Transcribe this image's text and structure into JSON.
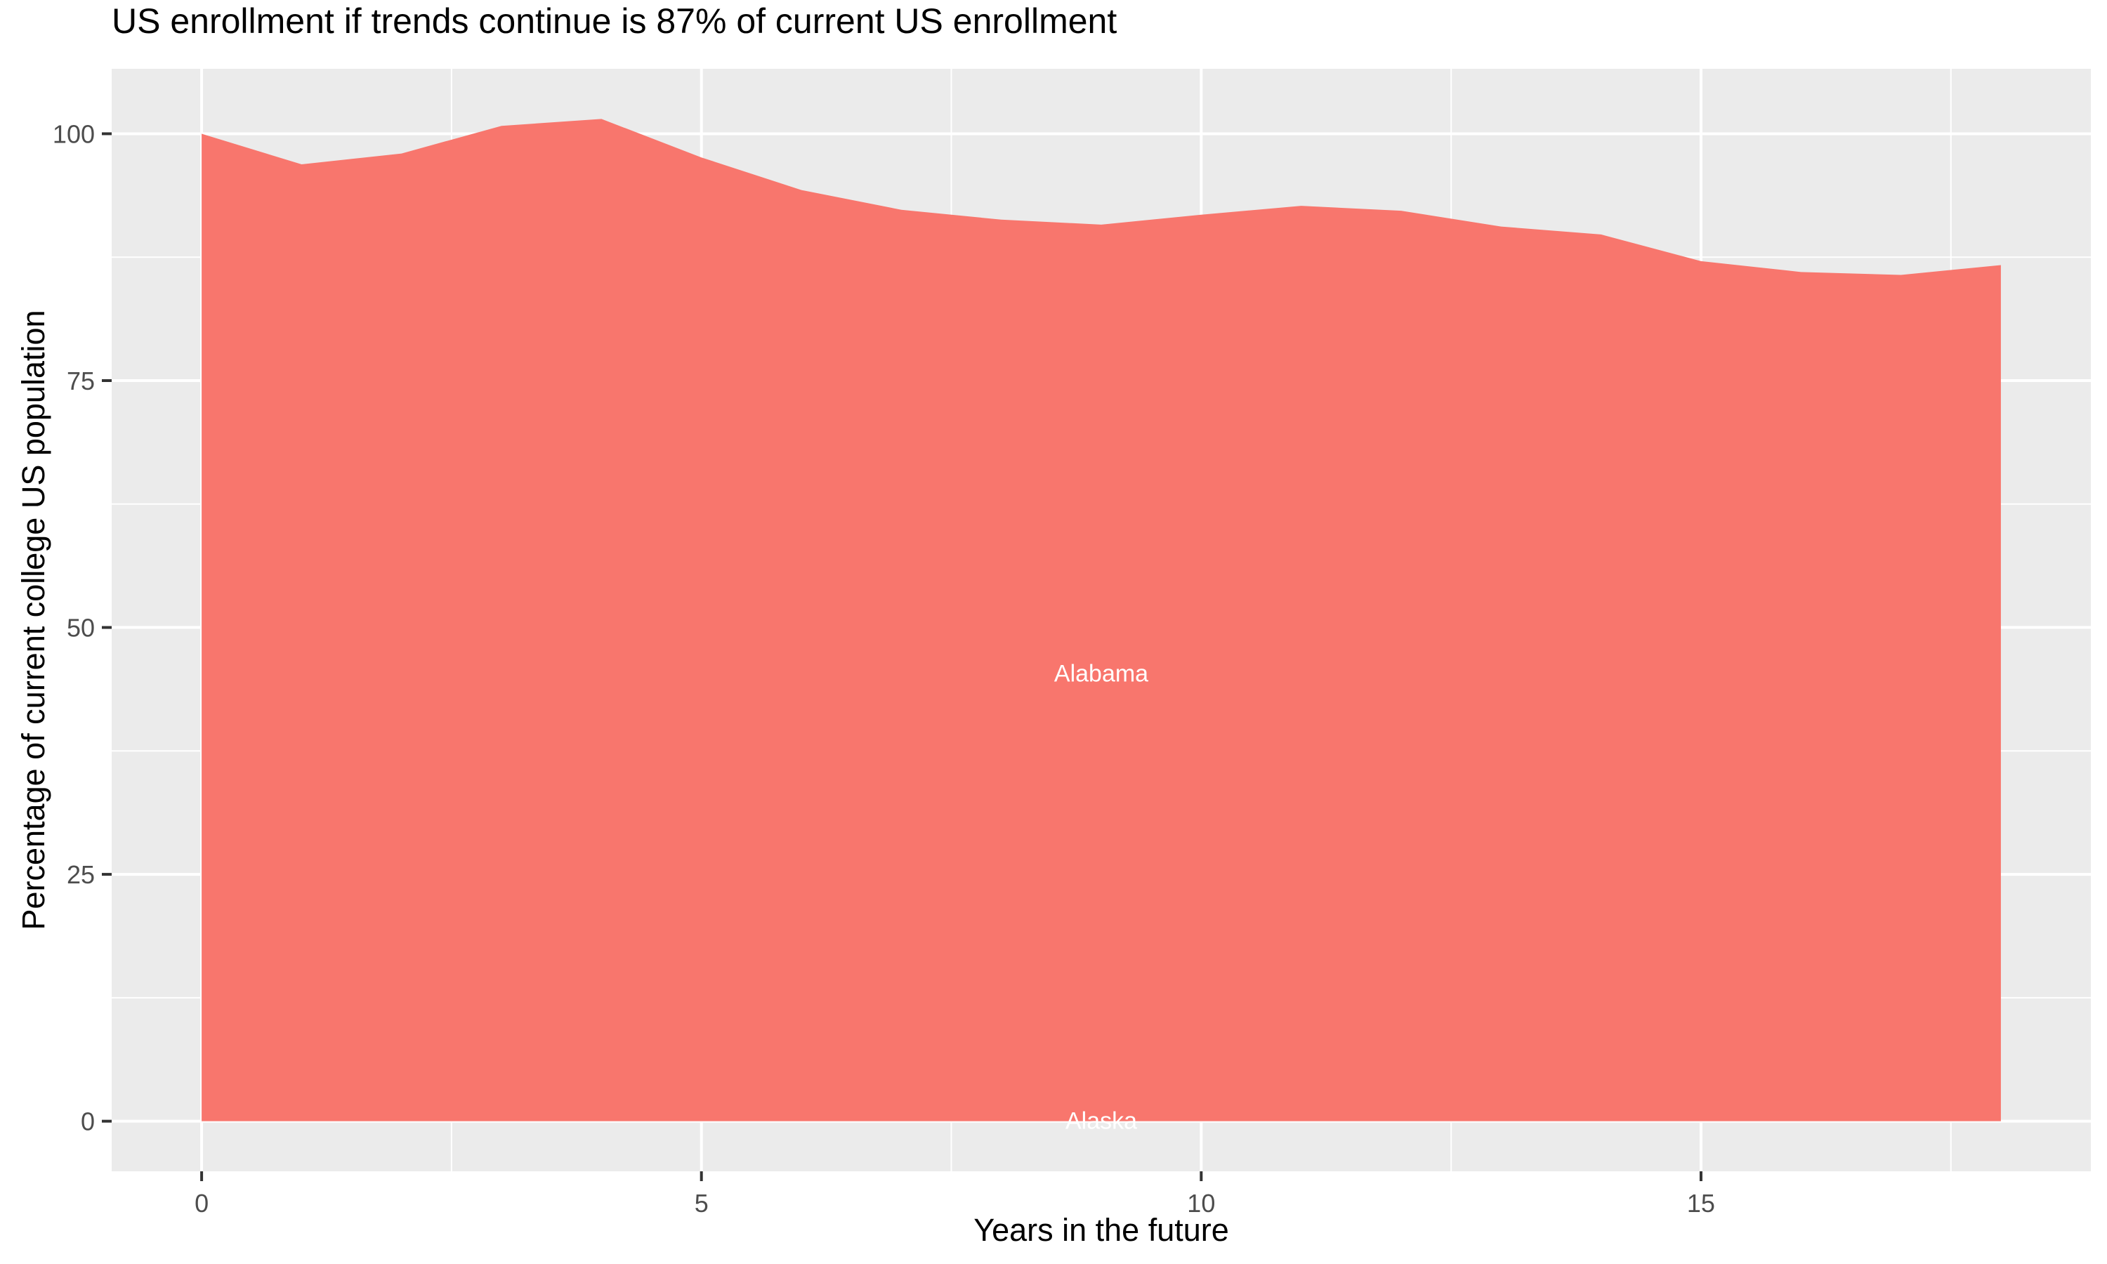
{
  "title": "US enrollment if trends continue is 87% of current US enrollment",
  "chart_data": {
    "type": "area",
    "title": "US enrollment if trends continue is 87% of current US enrollment",
    "xlabel": "Years in the future",
    "ylabel": "Percentage of current college US population",
    "x": [
      0,
      1,
      2,
      3,
      4,
      5,
      6,
      7,
      8,
      9,
      10,
      11,
      12,
      13,
      14,
      15,
      16,
      17,
      18
    ],
    "series": [
      {
        "name": "Alabama",
        "values": [
          100,
          96.9,
          98,
          100.8,
          101.5,
          97.6,
          94.3,
          92.3,
          91.3,
          90.8,
          91.8,
          92.7,
          92.2,
          90.6,
          89.8,
          87.1,
          86,
          85.7,
          86.7
        ],
        "label": "Alabama",
        "label_at_x": 9,
        "label_value": 45.3
      },
      {
        "name": "Alaska",
        "values": [
          0,
          0,
          0,
          0,
          0,
          0,
          0,
          0,
          0,
          0,
          0,
          0,
          0,
          0,
          0,
          0,
          0,
          0,
          0
        ],
        "label": "Alaska",
        "label_at_x": 9,
        "label_value": 0
      }
    ],
    "xlim": [
      0,
      18
    ],
    "ylim": [
      0,
      101.5
    ],
    "expand_mult": 0.05,
    "x_ticks": [
      "0",
      "5",
      "10",
      "15"
    ],
    "x_tick_values": [
      0,
      5,
      10,
      15
    ],
    "x_minor_values": [
      2.5,
      7.5,
      12.5,
      17.5
    ],
    "y_ticks": [
      "0",
      "25",
      "50",
      "75",
      "100"
    ],
    "y_tick_values": [
      0,
      25,
      50,
      75,
      100
    ],
    "y_minor_values": [
      12.5,
      37.5,
      62.5,
      87.5
    ],
    "grid": true,
    "legend": "none",
    "fill_color": "#F8766D",
    "panel_bg": "#EBEBEB",
    "grid_color": "#FFFFFF",
    "tick_mark_color": "#333333",
    "axis_text_color": "#4D4D4D",
    "area_label_color": "#FFFFFF"
  }
}
